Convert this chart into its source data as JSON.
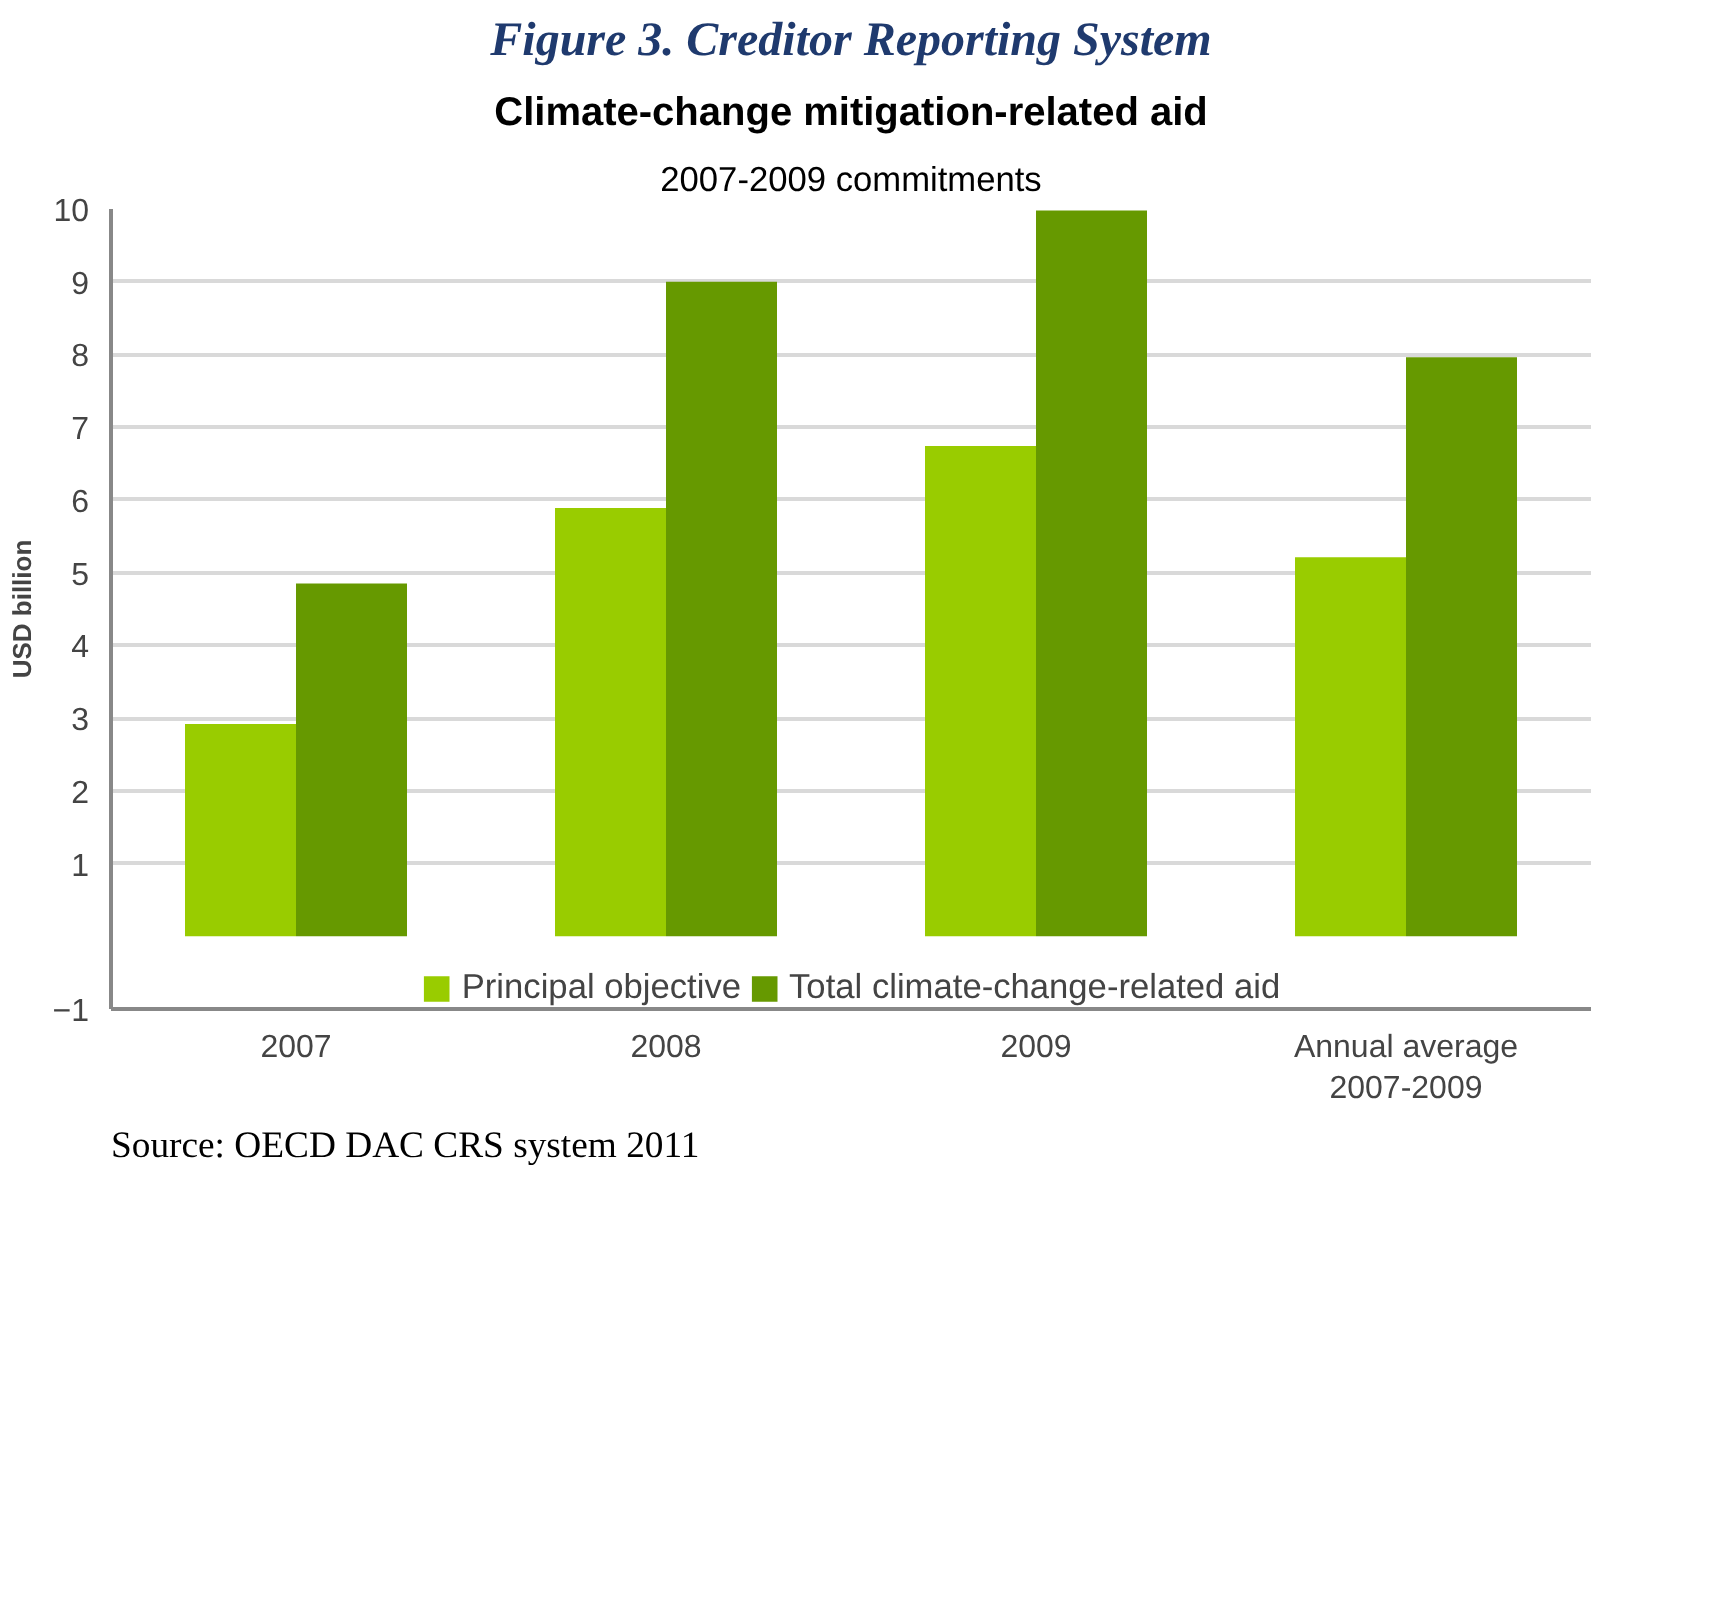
{
  "chart_data": {
    "type": "bar",
    "title": "Climate-change mitigation-related aid",
    "subtitle": "2007-2009 commitments",
    "ylabel": "USD billion",
    "categories": [
      "2007",
      "2008",
      "2009",
      "Annual average\n2007-2009"
    ],
    "series": [
      {
        "name": "Principal objective",
        "color": "#99cc00",
        "values": [
          2.92,
          5.89,
          6.74,
          5.21
        ]
      },
      {
        "name": "Total climate-change-related aid",
        "color": "#669900",
        "values": [
          4.85,
          9.0,
          9.98,
          7.96
        ]
      }
    ],
    "ylim": [
      -1,
      10
    ],
    "yticks": [
      -1,
      1,
      2,
      3,
      4,
      5,
      6,
      7,
      8,
      9,
      10
    ],
    "grid": "y",
    "legend": "bottom",
    "annotations": [
      "Figure 3. Creditor Reporting System",
      "Source: OECD DAC CRS system 2011"
    ]
  }
}
